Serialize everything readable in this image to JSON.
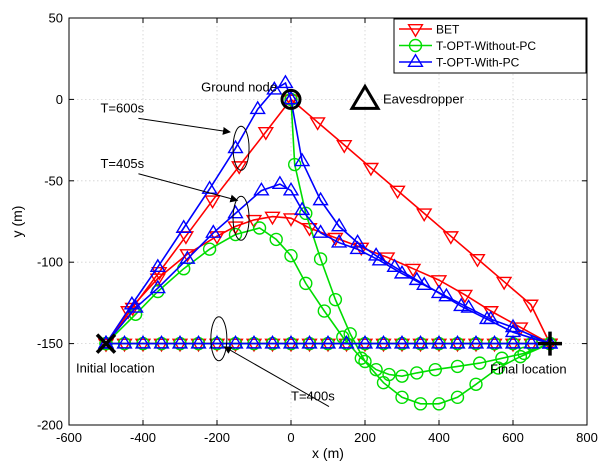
{
  "chart_data": {
    "type": "line",
    "title": "",
    "xlabel": "x (m)",
    "ylabel": "y (m)",
    "xlim": [
      -600,
      800
    ],
    "ylim": [
      -200,
      50
    ],
    "xticks": [
      -600,
      -400,
      -200,
      0,
      200,
      400,
      600,
      800
    ],
    "yticks": [
      -200,
      -150,
      -100,
      -50,
      0,
      50
    ],
    "xtick_labels": [
      "-600",
      "-400",
      "-200",
      "0",
      "200",
      "400",
      "600",
      "800"
    ],
    "ytick_labels": [
      "-200",
      "-150",
      "-100",
      "-50",
      "0",
      "50"
    ],
    "grid": true,
    "legend_position": "top-right",
    "series": [
      {
        "name": "BET",
        "color": "#ff0000",
        "marker": "triangle-down",
        "paths": [
          {
            "x": [
              -500,
              -428,
              -356,
              -284,
              -212,
              -140,
              -68,
              0
            ],
            "y": [
              -150,
              -128,
              -106,
              -84,
              -62,
              -41,
              -20,
              0
            ]
          },
          {
            "x": [
              0,
              72,
              144,
              216,
              288,
              360,
              432,
              504,
              576,
              648,
              700
            ],
            "y": [
              0,
              -14,
              -28,
              -42,
              -56,
              -70,
              -84,
              -98,
              -112,
              -126,
              -150
            ]
          },
          {
            "x": [
              -500,
              -440,
              -360,
              -280,
              -200,
              -150,
              -100,
              -50,
              0,
              50,
              120,
              190,
              260,
              330,
              400,
              470,
              540,
              620,
              700
            ],
            "y": [
              -150,
              -130,
              -110,
              -95,
              -84,
              -78,
              -74,
              -72,
              -73,
              -79,
              -85,
              -91,
              -97,
              -104,
              -111,
              -120,
              -130,
              -140,
              -150
            ]
          },
          {
            "x": [
              -500,
              -450,
              -400,
              -350,
              -300,
              -250,
              -200,
              -150,
              -100,
              -50,
              0,
              50,
              100,
              150,
              200,
              250,
              300,
              350,
              400,
              450,
              500,
              550,
              600,
              650,
              700
            ],
            "y": [
              -150,
              -150,
              -150,
              -150,
              -150,
              -150,
              -150,
              -150,
              -150,
              -150,
              -150,
              -150,
              -150,
              -150,
              -150,
              -150,
              -150,
              -150,
              -150,
              -150,
              -150,
              -150,
              -150,
              -150,
              -150
            ]
          }
        ]
      },
      {
        "name": "T-OPT-Without-PC",
        "color": "#00dd00",
        "marker": "circle",
        "paths": [
          {
            "x": [
              -500,
              -420,
              -360,
              -290,
              -220,
              -150,
              -85,
              -40,
              0,
              40,
              90,
              140,
              190,
              230,
              265,
              300,
              340,
              390,
              450,
              510,
              570,
              630,
              700
            ],
            "y": [
              -150,
              -132,
              -118,
              -104,
              -92,
              -83,
              -79,
              -86,
              -96,
              -113,
              -130,
              -146,
              -159,
              -166,
              -169,
              -170,
              -168,
              -166,
              -164,
              -162,
              -159,
              -156,
              -150
            ]
          },
          {
            "x": [
              0,
              10,
              40,
              80,
              120,
              160,
              200,
              250,
              300,
              350,
              400,
              450,
              500,
              560,
              620,
              700
            ],
            "y": [
              0,
              -40,
              -70,
              -98,
              -123,
              -144,
              -161,
              -174,
              -183,
              -187,
              -187,
              -183,
              -175,
              -165,
              -158,
              -150
            ]
          },
          {
            "x": [
              -500,
              -450,
              -400,
              -350,
              -300,
              -250,
              -200,
              -150,
              -100,
              -50,
              0,
              50,
              100,
              150,
              200,
              250,
              300,
              350,
              400,
              450,
              500,
              550,
              600,
              650,
              700
            ],
            "y": [
              -150,
              -150,
              -150,
              -150,
              -150,
              -150,
              -150,
              -150,
              -150,
              -150,
              -150,
              -150,
              -150,
              -150,
              -150,
              -150,
              -150,
              -150,
              -150,
              -150,
              -150,
              -150,
              -150,
              -150,
              -150
            ]
          }
        ]
      },
      {
        "name": "T-OPT-With-PC",
        "color": "#0000ff",
        "marker": "triangle-up",
        "paths": [
          {
            "x": [
              -500,
              -430,
              -360,
              -290,
              -220,
              -150,
              -90,
              -45,
              -15,
              0
            ],
            "y": [
              -150,
              -126,
              -103,
              -79,
              -55,
              -30,
              -6,
              6,
              10,
              0
            ]
          },
          {
            "x": [
              0,
              30,
              80,
              130,
              180,
              230,
              280,
              340,
              400,
              460,
              530,
              600,
              700
            ],
            "y": [
              0,
              -38,
              -62,
              -78,
              -88,
              -96,
              -103,
              -111,
              -119,
              -127,
              -135,
              -143,
              -150
            ]
          },
          {
            "x": [
              -500,
              -420,
              -360,
              -280,
              -210,
              -150,
              -80,
              -30,
              0,
              30,
              80,
              130,
              180,
              240,
              300,
              360,
              420,
              480,
              540,
              600,
              700
            ],
            "y": [
              -150,
              -128,
              -116,
              -98,
              -82,
              -70,
              -56,
              -52,
              -56,
              -68,
              -82,
              -88,
              -92,
              -99,
              -107,
              -114,
              -121,
              -128,
              -135,
              -140,
              -150
            ]
          },
          {
            "x": [
              -500,
              -450,
              -400,
              -350,
              -300,
              -250,
              -200,
              -150,
              -100,
              -50,
              0,
              50,
              100,
              150,
              200,
              250,
              300,
              350,
              400,
              450,
              500,
              550,
              600,
              650,
              700
            ],
            "y": [
              -150,
              -150,
              -150,
              -150,
              -150,
              -150,
              -150,
              -150,
              -150,
              -150,
              -150,
              -150,
              -150,
              -150,
              -150,
              -150,
              -150,
              -150,
              -150,
              -150,
              -150,
              -150,
              -150,
              -150,
              -150
            ]
          }
        ]
      }
    ],
    "points": {
      "ground_node": {
        "label": "Ground node",
        "x": 0,
        "y": 0
      },
      "eavesdropper": {
        "label": "Eavesdropper",
        "x": 200,
        "y": 0
      },
      "initial_location": {
        "label": "Initial location",
        "x": -500,
        "y": -150
      },
      "final_location": {
        "label": "Final location",
        "x": 700,
        "y": -150
      }
    },
    "annotations": [
      {
        "label": "T=600s",
        "x": -515,
        "y": -8,
        "ellipse_x": -135,
        "ellipse_y": -30,
        "arrow_to_x": -165,
        "arrow_to_y": -20
      },
      {
        "label": "T=405s",
        "x": -515,
        "y": -42,
        "ellipse_x": -135,
        "ellipse_y": -73,
        "arrow_to_x": -145,
        "arrow_to_y": -62
      },
      {
        "label": "T=400s",
        "x": 0,
        "y": -185,
        "ellipse_x": -195,
        "ellipse_y": -147,
        "arrow_to_x": -180,
        "arrow_to_y": -152
      }
    ]
  }
}
